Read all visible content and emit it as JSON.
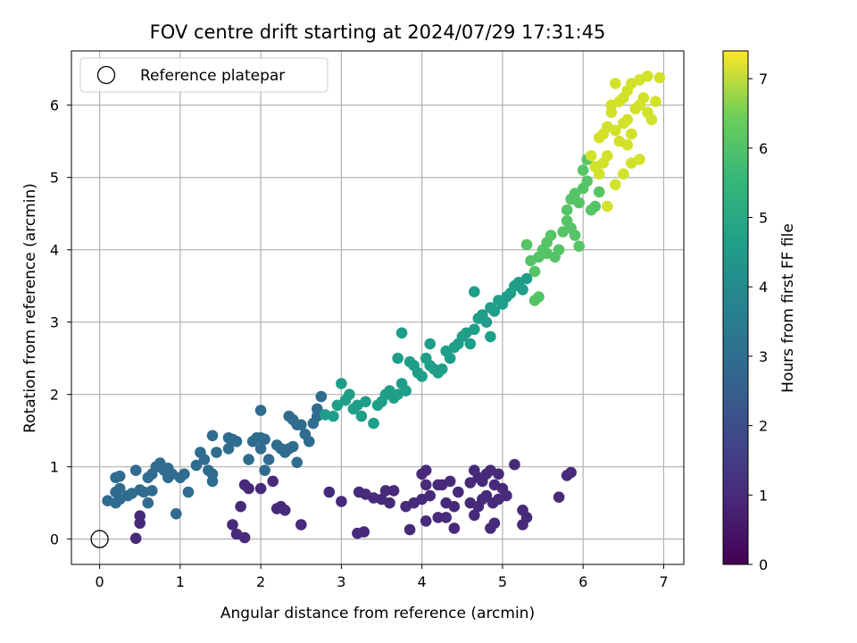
{
  "chart_data": {
    "type": "scatter",
    "title": "FOV centre drift starting at 2024/07/29 17:31:45",
    "xlabel": "Angular distance from reference (arcmin)",
    "ylabel": "Rotation from reference (arcmin)",
    "xlim": [
      -0.35,
      7.25
    ],
    "ylim": [
      -0.35,
      6.75
    ],
    "xticks": [
      0,
      1,
      2,
      3,
      4,
      5,
      6,
      7
    ],
    "yticks": [
      0,
      1,
      2,
      3,
      4,
      5,
      6
    ],
    "grid": true,
    "legend": {
      "position": "top-left",
      "entries": [
        "Reference platepar"
      ]
    },
    "reference_point": {
      "x": 0,
      "y": 0,
      "label": "Reference platepar"
    },
    "colorbar": {
      "label": "Hours from first FF file",
      "range": [
        0,
        7.4
      ],
      "ticks": [
        0,
        1,
        2,
        3,
        4,
        5,
        6,
        7
      ],
      "colormap": "viridis"
    },
    "series": [
      {
        "points": [
          [
            4.05,
            0.95
          ],
          [
            4.0,
            0.9
          ],
          [
            4.05,
            0.75
          ],
          [
            4.2,
            0.75
          ],
          [
            4.25,
            0.75
          ],
          [
            4.0,
            0.55
          ],
          [
            3.9,
            0.5
          ],
          [
            4.05,
            0.25
          ],
          [
            4.2,
            0.3
          ],
          [
            4.3,
            0.3
          ],
          [
            4.3,
            0.5
          ],
          [
            4.4,
            0.45
          ],
          [
            4.45,
            0.65
          ],
          [
            4.4,
            0.15
          ],
          [
            4.6,
            0.5
          ],
          [
            4.65,
            0.33
          ],
          [
            4.7,
            0.45
          ],
          [
            4.75,
            0.55
          ],
          [
            4.8,
            0.6
          ],
          [
            4.65,
            0.95
          ],
          [
            4.7,
            0.85
          ],
          [
            4.75,
            0.8
          ],
          [
            4.8,
            0.9
          ],
          [
            4.85,
            0.95
          ],
          [
            4.95,
            0.9
          ],
          [
            4.9,
            0.75
          ],
          [
            5.0,
            0.7
          ],
          [
            4.95,
            0.55
          ],
          [
            5.05,
            0.6
          ],
          [
            4.88,
            0.5
          ],
          [
            4.85,
            0.15
          ],
          [
            4.9,
            0.22
          ],
          [
            5.15,
            1.03
          ],
          [
            5.25,
            0.4
          ],
          [
            5.3,
            0.3
          ],
          [
            5.25,
            0.2
          ],
          [
            5.7,
            0.58
          ],
          [
            5.8,
            0.88
          ],
          [
            5.85,
            0.92
          ],
          [
            3.85,
            0.13
          ],
          [
            3.8,
            0.45
          ],
          [
            3.6,
            0.5
          ],
          [
            3.65,
            0.67
          ],
          [
            3.55,
            0.67
          ],
          [
            3.5,
            0.55
          ],
          [
            3.4,
            0.57
          ],
          [
            3.3,
            0.62
          ],
          [
            3.22,
            0.65
          ],
          [
            3.2,
            0.08
          ],
          [
            3.28,
            0.1
          ],
          [
            2.85,
            0.65
          ],
          [
            3.0,
            0.52
          ],
          [
            2.5,
            0.2
          ],
          [
            2.3,
            0.4
          ],
          [
            2.25,
            0.45
          ],
          [
            2.2,
            0.42
          ],
          [
            2.15,
            0.8
          ],
          [
            2.0,
            0.7
          ],
          [
            1.85,
            0.7
          ],
          [
            1.8,
            0.75
          ],
          [
            1.75,
            0.45
          ],
          [
            1.65,
            0.2
          ],
          [
            1.7,
            0.07
          ],
          [
            1.8,
            0.02
          ],
          [
            0.45,
            0.01
          ],
          [
            0.5,
            0.22
          ],
          [
            0.5,
            0.32
          ],
          [
            4.35,
            0.8
          ],
          [
            4.6,
            0.78
          ],
          [
            4.1,
            0.6
          ]
        ]
      },
      {
        "points": [
          [
            0.1,
            0.53
          ],
          [
            0.2,
            0.5
          ],
          [
            0.25,
            0.55
          ],
          [
            0.2,
            0.65
          ],
          [
            0.25,
            0.7
          ],
          [
            0.2,
            0.85
          ],
          [
            0.25,
            0.87
          ],
          [
            0.35,
            0.6
          ],
          [
            0.4,
            0.63
          ],
          [
            0.45,
            0.95
          ],
          [
            0.55,
            0.65
          ],
          [
            0.5,
            0.68
          ],
          [
            0.6,
            0.5
          ],
          [
            0.65,
            0.67
          ],
          [
            0.6,
            0.85
          ],
          [
            0.65,
            0.9
          ],
          [
            0.7,
            1.0
          ],
          [
            0.75,
            1.05
          ],
          [
            0.8,
            0.95
          ],
          [
            0.85,
            0.98
          ],
          [
            0.9,
            0.9
          ],
          [
            0.85,
            0.85
          ],
          [
            1.0,
            0.85
          ],
          [
            1.05,
            0.9
          ],
          [
            1.1,
            0.65
          ],
          [
            0.95,
            0.35
          ],
          [
            1.2,
            1.02
          ],
          [
            1.25,
            1.2
          ],
          [
            1.3,
            1.1
          ],
          [
            1.35,
            0.95
          ],
          [
            1.4,
            0.9
          ],
          [
            1.4,
            0.8
          ],
          [
            1.4,
            1.43
          ],
          [
            1.45,
            1.2
          ],
          [
            1.6,
            1.4
          ],
          [
            1.65,
            1.38
          ],
          [
            1.7,
            1.35
          ],
          [
            1.6,
            1.25
          ],
          [
            1.85,
            1.1
          ],
          [
            1.9,
            1.35
          ],
          [
            1.95,
            1.4
          ],
          [
            2.0,
            1.4
          ],
          [
            2.05,
            1.38
          ],
          [
            2.0,
            1.25
          ],
          [
            2.05,
            0.95
          ],
          [
            2.1,
            1.1
          ],
          [
            2.0,
            1.78
          ],
          [
            2.2,
            1.3
          ],
          [
            2.25,
            1.25
          ],
          [
            2.3,
            1.2
          ],
          [
            2.35,
            1.25
          ],
          [
            2.4,
            1.28
          ],
          [
            2.45,
            1.06
          ],
          [
            2.35,
            1.7
          ],
          [
            2.4,
            1.65
          ],
          [
            2.45,
            1.58
          ],
          [
            2.5,
            1.58
          ],
          [
            2.55,
            1.45
          ],
          [
            2.6,
            1.35
          ],
          [
            2.65,
            1.6
          ],
          [
            2.7,
            1.7
          ],
          [
            2.7,
            1.8
          ],
          [
            2.75,
            1.97
          ]
        ]
      },
      {
        "points": [
          [
            2.8,
            1.72
          ],
          [
            2.9,
            1.7
          ],
          [
            2.95,
            1.85
          ],
          [
            3.0,
            2.15
          ],
          [
            3.05,
            1.92
          ],
          [
            3.1,
            2.0
          ],
          [
            3.15,
            1.8
          ],
          [
            3.2,
            1.85
          ],
          [
            3.25,
            1.7
          ],
          [
            3.3,
            1.9
          ],
          [
            3.4,
            1.6
          ],
          [
            3.45,
            1.85
          ],
          [
            3.5,
            1.9
          ],
          [
            3.55,
            2.0
          ],
          [
            3.6,
            2.05
          ],
          [
            3.65,
            1.95
          ],
          [
            3.7,
            2.0
          ],
          [
            3.75,
            2.15
          ],
          [
            3.8,
            2.05
          ],
          [
            3.85,
            2.45
          ],
          [
            3.9,
            2.4
          ],
          [
            3.95,
            2.3
          ],
          [
            4.0,
            2.25
          ],
          [
            4.05,
            2.5
          ],
          [
            4.1,
            2.4
          ],
          [
            4.15,
            2.35
          ],
          [
            4.2,
            2.3
          ],
          [
            4.25,
            2.35
          ],
          [
            4.3,
            2.6
          ],
          [
            4.35,
            2.5
          ],
          [
            4.4,
            2.65
          ],
          [
            4.45,
            2.7
          ],
          [
            4.5,
            2.8
          ],
          [
            4.55,
            2.85
          ],
          [
            4.6,
            2.7
          ],
          [
            4.65,
            2.9
          ],
          [
            4.7,
            3.05
          ],
          [
            4.75,
            3.1
          ],
          [
            4.8,
            3.0
          ],
          [
            4.85,
            3.2
          ],
          [
            4.9,
            3.15
          ],
          [
            4.95,
            3.3
          ],
          [
            5.0,
            3.25
          ],
          [
            5.05,
            3.35
          ],
          [
            5.1,
            3.4
          ],
          [
            5.15,
            3.5
          ],
          [
            5.2,
            3.55
          ],
          [
            5.25,
            3.45
          ],
          [
            5.3,
            3.6
          ],
          [
            3.7,
            2.5
          ],
          [
            3.75,
            2.85
          ],
          [
            4.1,
            2.7
          ],
          [
            4.65,
            3.42
          ],
          [
            4.85,
            2.8
          ]
        ]
      },
      {
        "points": [
          [
            5.3,
            4.07
          ],
          [
            5.35,
            3.85
          ],
          [
            5.4,
            3.7
          ],
          [
            5.45,
            3.9
          ],
          [
            5.5,
            4.0
          ],
          [
            5.55,
            4.1
          ],
          [
            5.6,
            4.2
          ],
          [
            5.55,
            3.95
          ],
          [
            5.65,
            3.9
          ],
          [
            5.7,
            4.0
          ],
          [
            5.75,
            4.25
          ],
          [
            5.8,
            4.4
          ],
          [
            5.85,
            4.3
          ],
          [
            5.9,
            4.2
          ],
          [
            5.95,
            4.05
          ],
          [
            5.8,
            4.55
          ],
          [
            5.85,
            4.7
          ],
          [
            5.9,
            4.78
          ],
          [
            5.95,
            4.65
          ],
          [
            6.0,
            4.85
          ],
          [
            6.05,
            4.95
          ],
          [
            6.1,
            4.55
          ],
          [
            6.15,
            4.6
          ],
          [
            6.2,
            4.8
          ],
          [
            6.0,
            5.1
          ],
          [
            6.05,
            5.25
          ],
          [
            5.4,
            3.3
          ],
          [
            5.45,
            3.35
          ]
        ]
      },
      {
        "points": [
          [
            6.1,
            5.3
          ],
          [
            6.2,
            5.55
          ],
          [
            6.25,
            5.6
          ],
          [
            6.3,
            5.7
          ],
          [
            6.35,
            5.9
          ],
          [
            6.4,
            5.65
          ],
          [
            6.45,
            5.5
          ],
          [
            6.5,
            5.75
          ],
          [
            6.55,
            5.8
          ],
          [
            6.6,
            5.6
          ],
          [
            6.65,
            5.95
          ],
          [
            6.7,
            6.0
          ],
          [
            6.75,
            6.1
          ],
          [
            6.8,
            5.9
          ],
          [
            6.85,
            5.8
          ],
          [
            6.9,
            6.05
          ],
          [
            6.5,
            6.1
          ],
          [
            6.55,
            6.2
          ],
          [
            6.6,
            6.3
          ],
          [
            6.7,
            6.35
          ],
          [
            6.8,
            6.4
          ],
          [
            6.95,
            6.38
          ],
          [
            6.4,
            6.3
          ],
          [
            6.35,
            6.0
          ],
          [
            6.45,
            6.05
          ],
          [
            6.55,
            5.45
          ],
          [
            6.3,
            5.3
          ],
          [
            6.25,
            5.2
          ],
          [
            6.4,
            4.9
          ],
          [
            6.5,
            5.05
          ],
          [
            6.6,
            5.2
          ],
          [
            6.7,
            5.25
          ],
          [
            6.3,
            4.6
          ],
          [
            6.2,
            5.05
          ],
          [
            6.15,
            5.15
          ]
        ]
      }
    ],
    "series_hours": [
      0.9,
      2.6,
      4.1,
      5.4,
      6.9
    ]
  }
}
